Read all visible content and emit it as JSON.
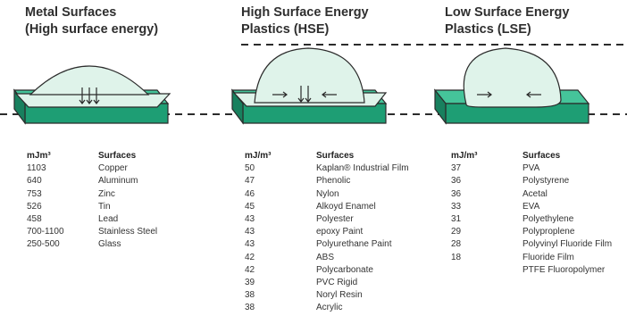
{
  "panels": [
    {
      "title_line1": "Metal Surfaces",
      "title_line2": "(High surface energy)",
      "header_value": "mJm³",
      "header_surface": "Surfaces",
      "rows": [
        {
          "value": "1103",
          "surface": "Copper"
        },
        {
          "value": "640",
          "surface": "Aluminum"
        },
        {
          "value": "753",
          "surface": "Zinc"
        },
        {
          "value": "526",
          "surface": "Tin"
        },
        {
          "value": "458",
          "surface": "Lead"
        },
        {
          "value": "700-1100",
          "surface": "Stainless Steel"
        },
        {
          "value": "250-500",
          "surface": "Glass"
        }
      ]
    },
    {
      "title_line1": "High Surface Energy",
      "title_line2": "Plastics (HSE)",
      "header_value": "mJ/m³",
      "header_surface": "Surfaces",
      "rows": [
        {
          "value": "50",
          "surface": "Kaplan® Industrial Film"
        },
        {
          "value": "47",
          "surface": "Phenolic"
        },
        {
          "value": "46",
          "surface": "Nylon"
        },
        {
          "value": "45",
          "surface": "Alkoyd Enamel"
        },
        {
          "value": "43",
          "surface": "Polyester"
        },
        {
          "value": "43",
          "surface": "epoxy Paint"
        },
        {
          "value": "43",
          "surface": "Polyurethane Paint"
        },
        {
          "value": "42",
          "surface": "ABS"
        },
        {
          "value": "42",
          "surface": "Polycarbonate"
        },
        {
          "value": "39",
          "surface": "PVC Rigid"
        },
        {
          "value": "38",
          "surface": "Noryl Resin"
        },
        {
          "value": "38",
          "surface": "Acrylic"
        }
      ]
    },
    {
      "title_line1": "Low Surface Energy",
      "title_line2": "Plastics (LSE)",
      "header_value": "mJ/m³",
      "header_surface": "Surfaces",
      "rows": [
        {
          "value": "37",
          "surface": "PVA"
        },
        {
          "value": "36",
          "surface": "Polystyrene"
        },
        {
          "value": "36",
          "surface": "Acetal"
        },
        {
          "value": "33",
          "surface": "EVA"
        },
        {
          "value": "31",
          "surface": "Polyethylene"
        },
        {
          "value": "29",
          "surface": "Polyproplene"
        },
        {
          "value": "28",
          "surface": "Polyvinyl Fluoride Film"
        },
        {
          "value": "18",
          "surface": "Fluoride Film"
        },
        {
          "value": "",
          "surface": "PTFE Fluoropolymer"
        }
      ]
    }
  ],
  "colors": {
    "plate_top": "#45c49a",
    "plate_front": "#1e9e74",
    "droplet_fill": "#dff3ea",
    "droplet_stroke": "#2b2b2b",
    "guide_line": "#2b2b2b"
  }
}
